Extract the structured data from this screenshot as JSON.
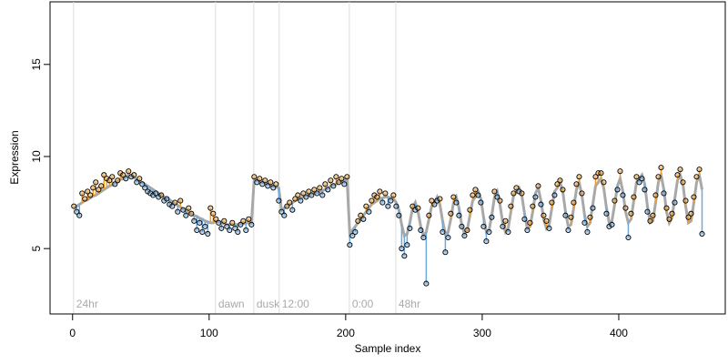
{
  "chart_data": {
    "type": "scatter",
    "xlabel": "Sample index",
    "ylabel": "Expression",
    "xlim": [
      -16.5,
      478
    ],
    "ylim": [
      1.45,
      18.4
    ],
    "xticks": [
      0,
      100,
      200,
      300,
      400
    ],
    "yticks": [
      5,
      10,
      15
    ],
    "above_color": "#f0a030",
    "below_color": "#6fa8dc",
    "fit_color": "#a8a8a8",
    "event_color": "#dddddd",
    "events": [
      {
        "x": 0.7,
        "label": "24hr"
      },
      {
        "x": 104.7,
        "label": "dawn"
      },
      {
        "x": 132.7,
        "label": "dusk"
      },
      {
        "x": 151.3,
        "label": "12:00"
      },
      {
        "x": 202.7,
        "label": "0:00"
      },
      {
        "x": 236.7,
        "label": "48hr"
      }
    ],
    "x": [
      1,
      3,
      5,
      7,
      9,
      11,
      13,
      15,
      17,
      19,
      21,
      23,
      25,
      27,
      29,
      31,
      33,
      35,
      37,
      39,
      41,
      43,
      45,
      47,
      49,
      51,
      53,
      55,
      57,
      59,
      61,
      63,
      65,
      67,
      69,
      71,
      73,
      75,
      77,
      79,
      81,
      83,
      85,
      87,
      89,
      91,
      93,
      95,
      97,
      99,
      101,
      103,
      105,
      107,
      109,
      111,
      113,
      115,
      117,
      119,
      121,
      123,
      125,
      127,
      129,
      131,
      133,
      135,
      137,
      139,
      141,
      143,
      145,
      147,
      149,
      151,
      153,
      155,
      157,
      159,
      161,
      163,
      165,
      167,
      169,
      171,
      173,
      175,
      177,
      179,
      181,
      183,
      185,
      187,
      189,
      191,
      193,
      195,
      197,
      199,
      201,
      203,
      205,
      207,
      209,
      211,
      213,
      215,
      217,
      219,
      221,
      223,
      225,
      227,
      229,
      231,
      233,
      235,
      237,
      239,
      241,
      243,
      245,
      247,
      249,
      251,
      253,
      255,
      257,
      259,
      261,
      263,
      265,
      267,
      269,
      271,
      273,
      275,
      277,
      279,
      281,
      283,
      285,
      287,
      289,
      291,
      293,
      295,
      297,
      299,
      301,
      303,
      305,
      307,
      309,
      311,
      313,
      315,
      317,
      319,
      321,
      323,
      325,
      327,
      329,
      331,
      333,
      335,
      337,
      339,
      341,
      343,
      345,
      347,
      349,
      351,
      353,
      355,
      357,
      359,
      361,
      363,
      365,
      367,
      369,
      371,
      373,
      375,
      377,
      379,
      381,
      383,
      385,
      387,
      389,
      391,
      393,
      395,
      397,
      399,
      401,
      403,
      405,
      407,
      409,
      411,
      413,
      415,
      417,
      419,
      421,
      423,
      425,
      427,
      429,
      431,
      433,
      435,
      437,
      439,
      441,
      443,
      445,
      447,
      449,
      451,
      453,
      455,
      457,
      459,
      461
    ],
    "values": [
      7.3,
      7.0,
      6.8,
      8.0,
      7.7,
      8.1,
      7.9,
      8.3,
      8.6,
      8.2,
      8.4,
      9.0,
      8.8,
      8.7,
      8.9,
      8.5,
      8.7,
      9.1,
      9.0,
      8.8,
      9.2,
      8.9,
      9.0,
      8.6,
      8.8,
      8.5,
      8.3,
      8.1,
      8.0,
      7.9,
      8.0,
      7.8,
      7.9,
      7.6,
      7.7,
      7.4,
      7.3,
      7.5,
      7.0,
      7.6,
      7.1,
      6.8,
      7.2,
      6.9,
      6.5,
      6.0,
      6.4,
      5.9,
      6.2,
      5.8,
      7.2,
      6.9,
      6.6,
      6.4,
      6.1,
      6.5,
      6.2,
      6.0,
      6.4,
      6.1,
      5.9,
      6.3,
      6.5,
      6.0,
      6.6,
      6.3,
      8.9,
      8.6,
      8.8,
      8.5,
      8.7,
      8.4,
      8.6,
      8.3,
      8.5,
      7.6,
      7.0,
      6.8,
      7.3,
      7.5,
      7.1,
      7.7,
      7.9,
      7.6,
      8.0,
      7.8,
      8.1,
      7.9,
      8.2,
      8.0,
      8.3,
      7.9,
      8.5,
      8.2,
      8.7,
      8.4,
      8.9,
      8.6,
      8.8,
      8.5,
      8.9,
      5.2,
      5.7,
      5.9,
      6.5,
      6.8,
      6.6,
      7.3,
      7.0,
      7.6,
      7.9,
      7.8,
      8.1,
      7.5,
      8.0,
      7.3,
      7.6,
      7.9,
      7.3,
      6.8,
      5.0,
      4.6,
      5.2,
      6.1,
      7.3,
      7.1,
      7.2,
      6.0,
      5.6,
      3.1,
      6.8,
      7.6,
      7.4,
      7.6,
      7.7,
      5.9,
      4.8,
      5.6,
      6.9,
      7.8,
      7.5,
      6.8,
      6.2,
      5.7,
      6.0,
      7.1,
      7.9,
      8.2,
      7.9,
      7.5,
      6.2,
      5.4,
      5.9,
      6.7,
      8.1,
      7.8,
      7.6,
      6.2,
      6.5,
      5.9,
      7.3,
      8.0,
      8.3,
      8.1,
      8.0,
      6.6,
      6.0,
      6.4,
      7.3,
      7.8,
      8.4,
      7.4,
      6.8,
      6.5,
      6.1,
      7.5,
      7.9,
      8.5,
      8.7,
      8.2,
      6.8,
      6.0,
      6.7,
      7.5,
      8.5,
      8.9,
      8.0,
      6.4,
      5.9,
      6.7,
      7.2,
      8.9,
      9.1,
      9.1,
      8.6,
      6.9,
      6.2,
      6.3,
      7.6,
      8.2,
      9.2,
      7.9,
      7.2,
      5.6,
      6.9,
      7.8,
      8.9,
      8.6,
      8.8,
      8.2,
      7.0,
      6.5,
      6.8,
      7.9,
      8.9,
      9.4,
      8.0,
      7.2,
      6.6,
      6.9,
      7.5,
      9.0,
      9.3,
      8.6,
      7.6,
      6.7,
      6.9,
      7.8,
      8.9,
      9.3,
      5.8
    ],
    "fit": [
      7.2,
      7.3,
      7.4,
      7.5,
      7.6,
      7.65,
      7.75,
      7.85,
      7.9,
      8.0,
      8.1,
      8.2,
      8.3,
      8.4,
      8.45,
      8.55,
      8.65,
      8.75,
      8.8,
      8.9,
      9.0,
      8.95,
      8.85,
      8.75,
      8.65,
      8.6,
      8.5,
      8.4,
      8.3,
      8.2,
      8.1,
      8.0,
      7.9,
      7.8,
      7.75,
      7.65,
      7.55,
      7.45,
      7.35,
      7.25,
      7.15,
      7.05,
      6.95,
      6.9,
      6.8,
      6.75,
      6.65,
      6.6,
      6.5,
      6.45,
      6.4,
      6.4,
      6.5,
      6.45,
      6.4,
      6.35,
      6.3,
      6.3,
      6.3,
      6.3,
      6.3,
      6.35,
      6.35,
      6.4,
      6.4,
      6.4,
      8.75,
      8.7,
      8.65,
      8.6,
      8.55,
      8.5,
      8.45,
      8.4,
      8.35,
      8.3,
      7.1,
      7.2,
      7.3,
      7.4,
      7.5,
      7.6,
      7.7,
      7.75,
      7.8,
      7.85,
      7.9,
      7.95,
      8.0,
      8.05,
      8.1,
      8.15,
      8.2,
      8.3,
      8.4,
      8.45,
      8.5,
      8.6,
      8.65,
      8.7,
      8.8,
      5.8,
      6.0,
      6.2,
      6.4,
      6.6,
      6.8,
      7.0,
      7.2,
      7.4,
      7.5,
      7.6,
      7.7,
      7.75,
      7.8,
      7.8,
      7.75,
      7.7,
      7.5,
      7.1,
      6.3,
      5.7,
      5.8,
      6.4,
      7.2,
      7.5,
      7.0,
      6.2,
      5.7,
      5.9,
      6.6,
      7.3,
      7.5,
      7.8,
      7.4,
      6.5,
      5.8,
      5.9,
      6.6,
      7.5,
      7.8,
      7.2,
      6.3,
      5.8,
      6.0,
      6.8,
      7.6,
      7.8,
      8.1,
      7.7,
      6.7,
      5.9,
      6.0,
      6.8,
      7.8,
      8.1,
      7.4,
      6.4,
      5.9,
      6.1,
      7.0,
      7.9,
      8.1,
      8.3,
      7.9,
      6.9,
      6.1,
      6.2,
      7.0,
      8.0,
      8.3,
      7.6,
      6.6,
      6.1,
      6.3,
      7.2,
      8.1,
      8.3,
      8.6,
      8.1,
      7.0,
      6.2,
      6.3,
      7.2,
      8.2,
      8.6,
      7.9,
      6.8,
      6.2,
      6.4,
      7.4,
      8.4,
      8.6,
      8.8,
      8.3,
      7.2,
      6.4,
      6.5,
      7.4,
      8.4,
      8.8,
      8.1,
      7.0,
      6.4,
      6.6,
      7.6,
      8.6,
      8.8,
      9.0,
      8.5,
      7.3,
      6.4,
      6.5,
      7.5,
      8.6,
      9.0,
      8.2,
      7.0,
      6.4,
      6.7,
      7.7,
      8.7,
      9.0,
      8.5,
      7.3,
      6.4,
      6.5,
      7.5,
      8.6,
      9.0,
      8.2
    ]
  }
}
